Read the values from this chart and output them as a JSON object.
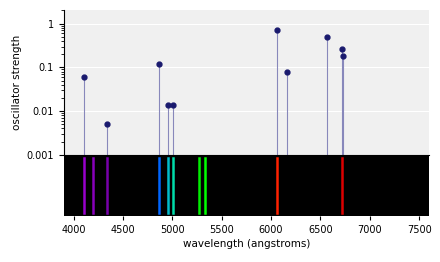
{
  "wavelengths_top": [
    4102,
    4340,
    4861,
    4959,
    5007,
    6063,
    6163,
    6563,
    6717,
    6731
  ],
  "strengths_top": [
    0.06,
    0.005,
    0.12,
    0.014,
    0.014,
    0.7,
    0.08,
    0.5,
    0.27,
    0.18
  ],
  "spectrum_lines": [
    {
      "wl": 4102,
      "color": "#9900cc"
    },
    {
      "wl": 4200,
      "color": "#8800bb"
    },
    {
      "wl": 4340,
      "color": "#7700aa"
    },
    {
      "wl": 4861,
      "color": "#0066ff"
    },
    {
      "wl": 4959,
      "color": "#00bbcc"
    },
    {
      "wl": 5007,
      "color": "#00ddaa"
    },
    {
      "wl": 5270,
      "color": "#00ee00"
    },
    {
      "wl": 5335,
      "color": "#00ff00"
    },
    {
      "wl": 6063,
      "color": "#ff2200"
    },
    {
      "wl": 6717,
      "color": "#dd0000"
    }
  ],
  "xlim": [
    3900,
    7600
  ],
  "xlabel": "wavelength (angstroms)",
  "ylabel": "oscillator strength",
  "stem_color": "#8888bb",
  "marker_color": "#1a1a6e",
  "top_bg": "#f0f0f0",
  "bot_bg": "#000000",
  "grid_color": "#cccccc",
  "xticks": [
    4000,
    4500,
    5000,
    5500,
    6000,
    6500,
    7000,
    7500
  ]
}
